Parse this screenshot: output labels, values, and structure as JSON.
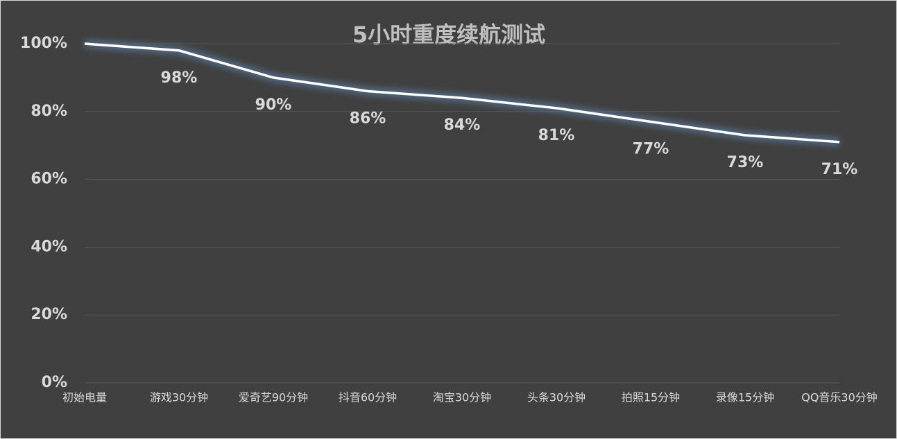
{
  "chart_data": {
    "type": "line",
    "title": "5小时重度续航测试",
    "categories": [
      "初始电量",
      "游戏30分钟",
      "爱奇艺90分钟",
      "抖音60分钟",
      "淘宝30分钟",
      "头条30分钟",
      "拍照15分钟",
      "录像15分钟",
      "QQ音乐30分钟"
    ],
    "values": [
      100,
      98,
      90,
      86,
      84,
      81,
      77,
      73,
      71
    ],
    "value_labels": [
      null,
      "98%",
      "90%",
      "86%",
      "84%",
      "81%",
      "77%",
      "73%",
      "71%"
    ],
    "color": "#ffffff",
    "ylim": [
      0,
      100
    ],
    "yticks": [
      {
        "value": 0,
        "label": "0%"
      },
      {
        "value": 20,
        "label": "20%"
      },
      {
        "value": 40,
        "label": "40%"
      },
      {
        "value": 60,
        "label": "60%"
      },
      {
        "value": 80,
        "label": "80%"
      },
      {
        "value": 100,
        "label": "100%"
      }
    ],
    "grid": true
  }
}
